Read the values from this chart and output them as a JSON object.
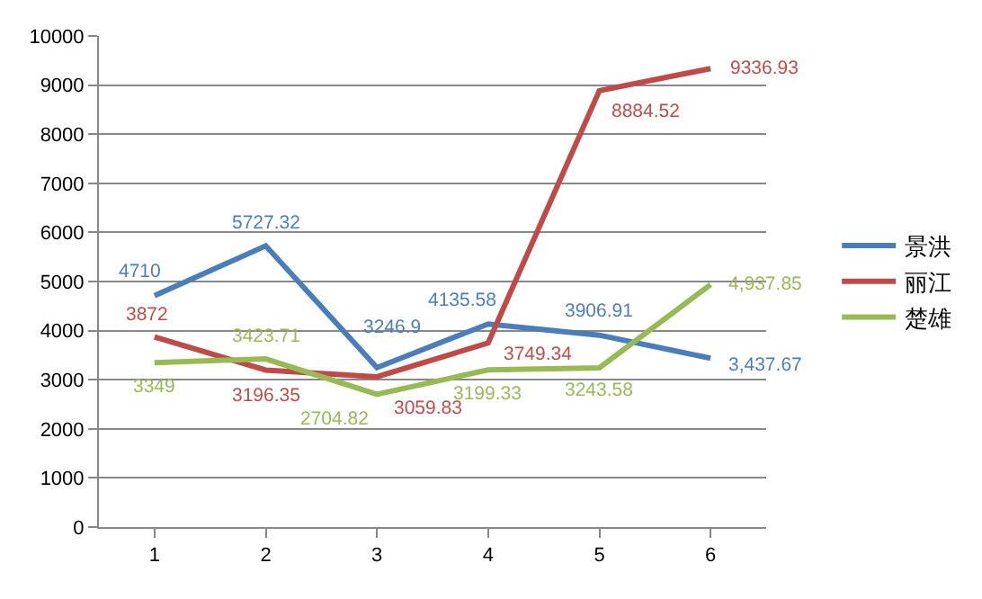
{
  "chart_data": {
    "type": "line",
    "categories": [
      "1",
      "2",
      "3",
      "4",
      "5",
      "6"
    ],
    "series": [
      {
        "name": "景洪",
        "color": "#4a7ebb",
        "values": [
          4710,
          5727.32,
          3246.9,
          4135.58,
          3906.91,
          3437.67
        ],
        "value_labels": [
          "4710",
          "5727.32",
          "3246.9",
          "4135.58",
          "3906.91",
          "3,437.67"
        ]
      },
      {
        "name": "丽江",
        "color": "#be4b48",
        "values": [
          3872,
          3196.35,
          3059.83,
          3749.34,
          8884.52,
          9336.93
        ],
        "value_labels": [
          "3872",
          "3196.35",
          "3059.83",
          "3749.34",
          "8884.52",
          "9336.93"
        ]
      },
      {
        "name": "楚雄",
        "color": "#98b954",
        "values": [
          3349,
          3423.71,
          2704.82,
          3199.33,
          3243.58,
          4937.85
        ],
        "value_labels": [
          "3349",
          "3423.71",
          "2704.82",
          "3199.33",
          "3243.58",
          "4,937.85"
        ]
      }
    ],
    "ylim": [
      0,
      10000
    ],
    "yticks": [
      0,
      1000,
      2000,
      3000,
      4000,
      5000,
      6000,
      7000,
      8000,
      9000,
      10000
    ],
    "grid": "y",
    "legend": "right",
    "marker": "none",
    "line_style": "solid"
  }
}
